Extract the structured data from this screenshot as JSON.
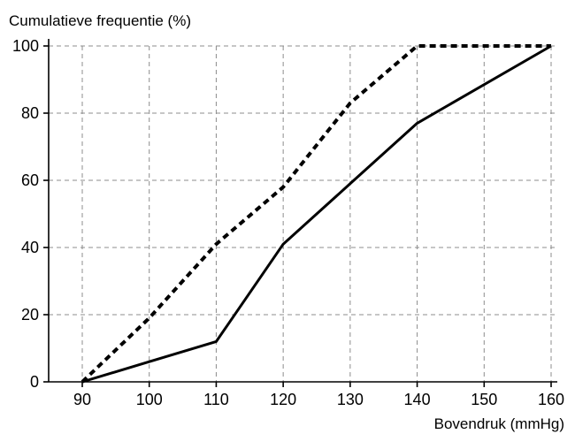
{
  "chart_data": {
    "type": "line",
    "title": "",
    "ylabel": "Cumulatieve frequentie (%)",
    "xlabel": "Bovendruk (mmHg)",
    "xlim": [
      90,
      160
    ],
    "ylim": [
      0,
      100
    ],
    "x_ticks": [
      "90",
      "100",
      "110",
      "120",
      "130",
      "140",
      "150",
      "160"
    ],
    "y_ticks": [
      "0",
      "20",
      "40",
      "60",
      "80",
      "100"
    ],
    "grid": true,
    "legend": "none",
    "series": [
      {
        "style": "dashed",
        "color": "#000000",
        "x": [
          90,
          100,
          110,
          120,
          130,
          140,
          160
        ],
        "y": [
          0,
          19,
          41,
          58,
          83,
          100,
          100
        ]
      },
      {
        "style": "solid",
        "color": "#000000",
        "x": [
          90,
          100,
          110,
          120,
          130,
          140,
          160
        ],
        "y": [
          0,
          6,
          12,
          41,
          59,
          77,
          100
        ]
      }
    ]
  }
}
